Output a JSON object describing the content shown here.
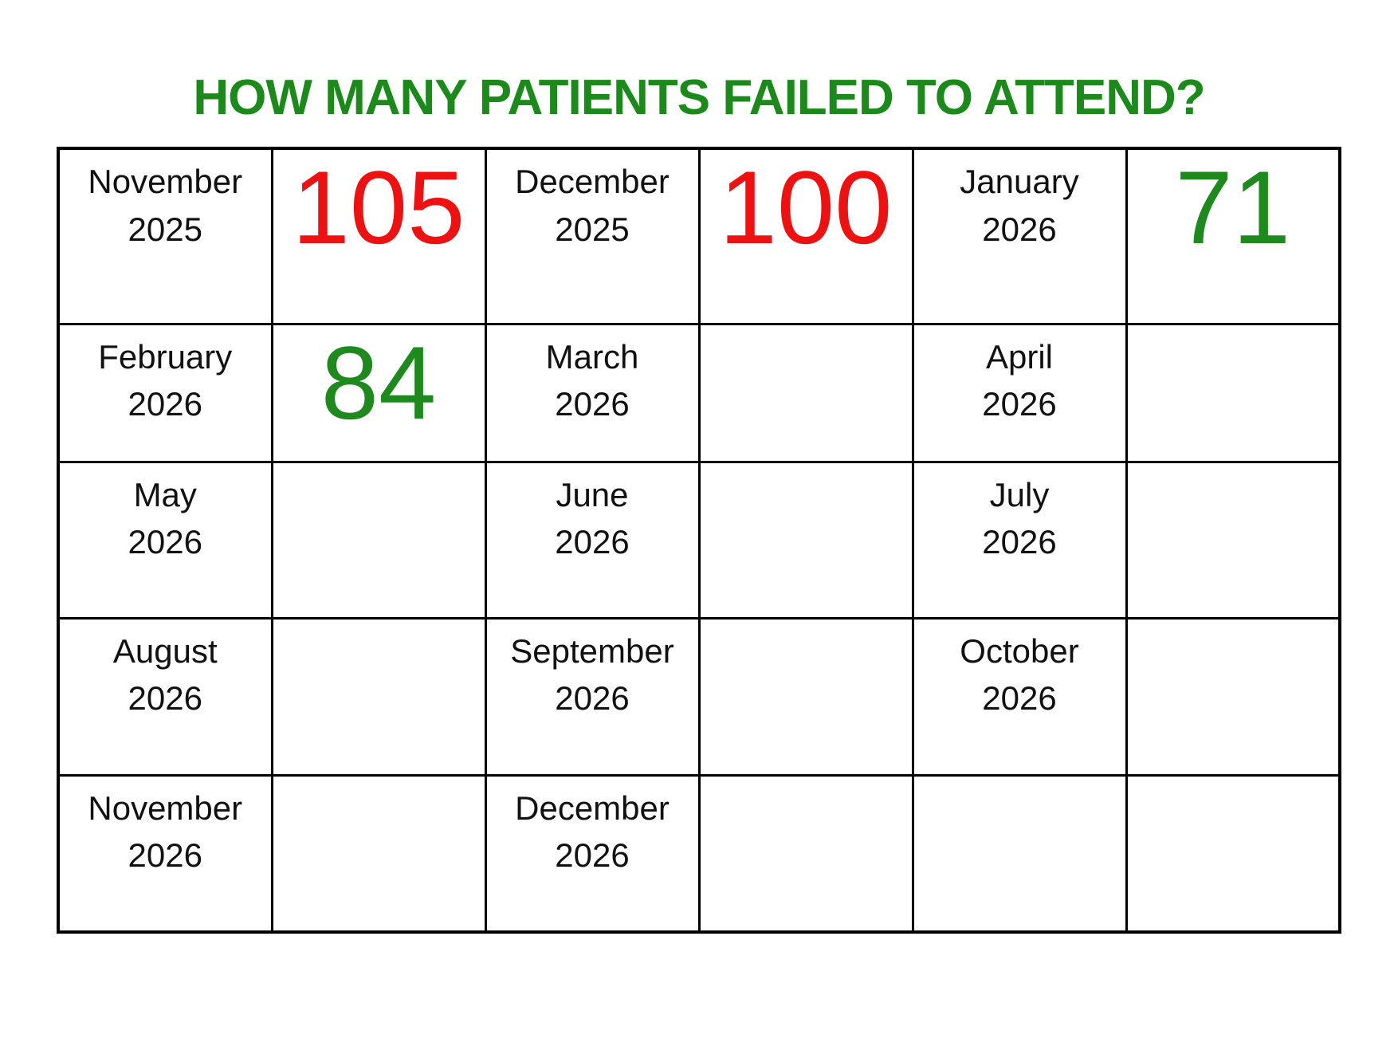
{
  "title": "HOW MANY PATIENTS FAILED TO ATTEND?",
  "colors": {
    "title_green": "#1B8A1B",
    "value_red": "#EE1111",
    "value_green": "#1E8A1E",
    "grid_border": "#000000",
    "gray_border_segment": "#8C8C8C",
    "month_text": "#111111",
    "background": "#FFFFFF"
  },
  "table": {
    "rows": [
      {
        "cells": [
          {
            "kind": "month",
            "line1": "November",
            "line2": "2025"
          },
          {
            "kind": "value",
            "value": "105",
            "color": "#EE1111"
          },
          {
            "kind": "month",
            "line1": "December",
            "line2": "2025"
          },
          {
            "kind": "value",
            "value": "100",
            "color": "#EE1111"
          },
          {
            "kind": "month",
            "line1": "January",
            "line2": "2026"
          },
          {
            "kind": "value",
            "value": "71",
            "color": "#1E8A1E"
          }
        ]
      },
      {
        "cells": [
          {
            "kind": "month",
            "line1": "February",
            "line2": "2026"
          },
          {
            "kind": "value",
            "value": "84",
            "color": "#1E8A1E"
          },
          {
            "kind": "month",
            "line1": "March",
            "line2": "2026"
          },
          {
            "kind": "empty"
          },
          {
            "kind": "month",
            "line1": "April",
            "line2": "2026"
          },
          {
            "kind": "empty"
          }
        ]
      },
      {
        "cells": [
          {
            "kind": "month",
            "line1": "May",
            "line2": "2026"
          },
          {
            "kind": "empty"
          },
          {
            "kind": "month",
            "line1": "June",
            "line2": "2026"
          },
          {
            "kind": "empty"
          },
          {
            "kind": "month",
            "line1": "July",
            "line2": "2026"
          },
          {
            "kind": "empty"
          }
        ]
      },
      {
        "cells": [
          {
            "kind": "month",
            "line1": "August",
            "line2": "2026"
          },
          {
            "kind": "empty"
          },
          {
            "kind": "month",
            "line1": "September",
            "line2": "2026"
          },
          {
            "kind": "empty"
          },
          {
            "kind": "month",
            "line1": "October",
            "line2": "2026"
          },
          {
            "kind": "empty"
          }
        ]
      },
      {
        "cells": [
          {
            "kind": "month",
            "line1": "November",
            "line2": "2026"
          },
          {
            "kind": "empty"
          },
          {
            "kind": "month",
            "line1": "December",
            "line2": "2026"
          },
          {
            "kind": "empty"
          },
          {
            "kind": "empty"
          },
          {
            "kind": "empty"
          }
        ]
      }
    ]
  },
  "chart_data": {
    "type": "table",
    "title": "HOW MANY PATIENTS FAILED TO ATTEND?",
    "categories": [
      "November 2025",
      "December 2025",
      "January 2026",
      "February 2026",
      "March 2026",
      "April 2026",
      "May 2026",
      "June 2026",
      "July 2026",
      "August 2026",
      "September 2026",
      "October 2026",
      "November 2026",
      "December 2026"
    ],
    "values": [
      105,
      100,
      71,
      84,
      null,
      null,
      null,
      null,
      null,
      null,
      null,
      null,
      null,
      null
    ],
    "value_colors": [
      "#EE1111",
      "#EE1111",
      "#1E8A1E",
      "#1E8A1E",
      null,
      null,
      null,
      null,
      null,
      null,
      null,
      null,
      null,
      null
    ],
    "layout": "grid of month-label cell followed by value cell, 3 month/value pairs per row, 5 rows"
  }
}
